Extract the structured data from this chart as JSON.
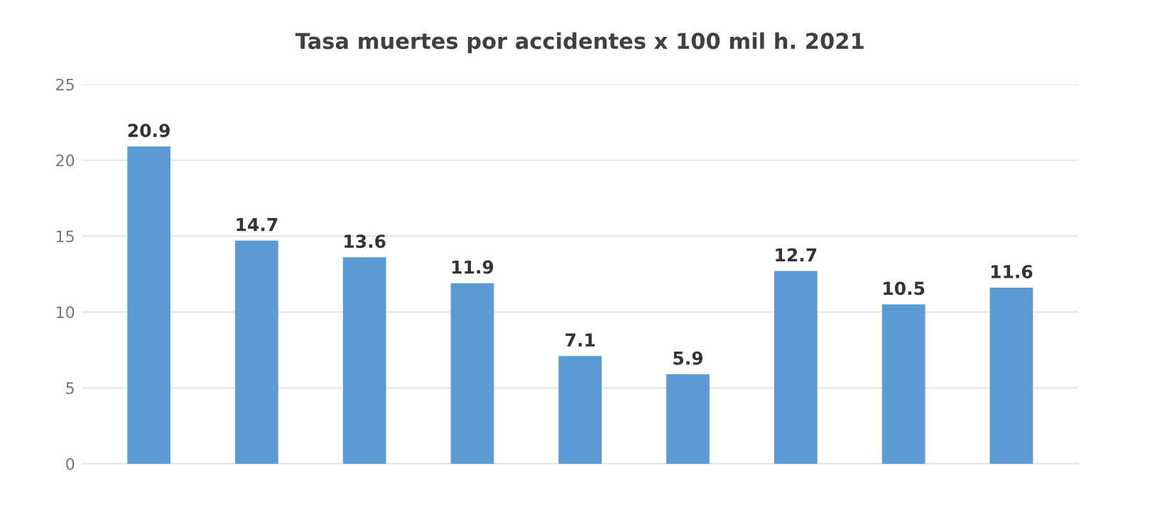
{
  "chart_data": {
    "type": "bar",
    "title": "Tasa muertes por accidentes x 100 mil h. 2021",
    "categories": [
      null,
      null,
      null,
      null,
      null,
      null,
      null,
      null,
      null
    ],
    "values": [
      20.9,
      14.7,
      13.6,
      11.9,
      7.1,
      5.9,
      12.7,
      10.5,
      11.6
    ],
    "color": "#5b9bd5",
    "ylim": [
      0,
      25
    ],
    "yticks": [
      0,
      5,
      10,
      15,
      20,
      25
    ],
    "grid": "y",
    "data_labels": true
  }
}
